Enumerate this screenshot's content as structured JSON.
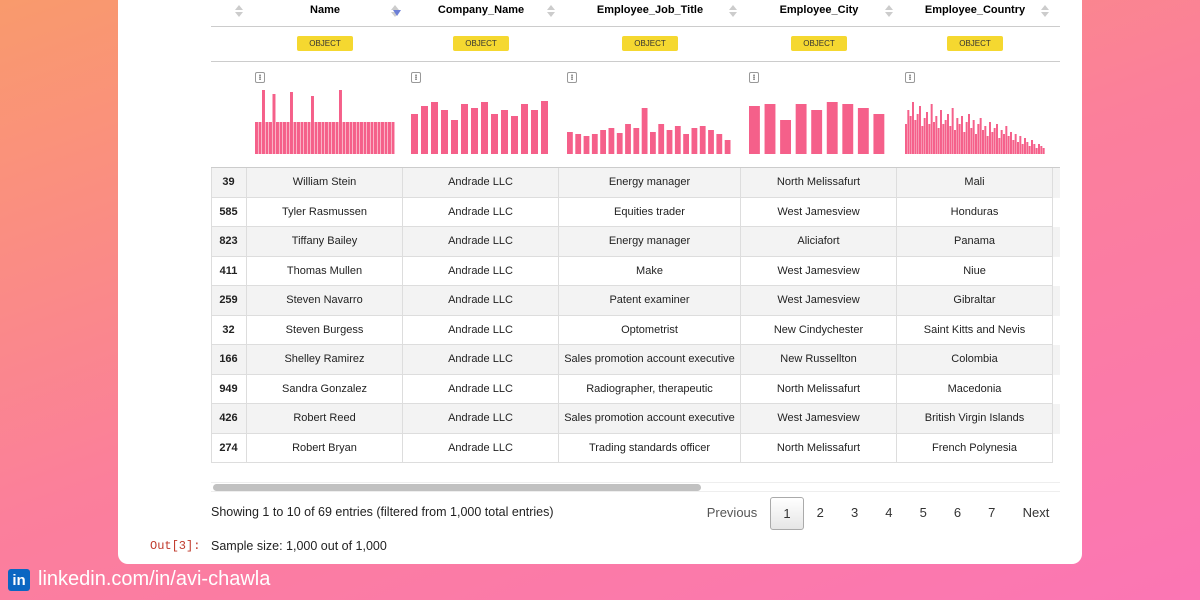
{
  "table": {
    "columns": [
      "Name",
      "Company_Name",
      "Employee_Job_Title",
      "Employee_City",
      "Employee_Country"
    ],
    "dtypes": [
      "OBJECT",
      "OBJECT",
      "OBJECT",
      "OBJECT",
      "OBJECT"
    ],
    "histograms": [
      [
        32,
        32,
        64,
        32,
        32,
        60,
        32,
        32,
        32,
        32,
        62,
        32,
        32,
        32,
        32,
        32,
        58,
        32,
        32,
        32,
        32,
        32,
        32,
        32,
        64,
        32,
        32,
        32,
        32,
        32,
        32,
        32,
        32,
        32,
        32,
        32,
        32,
        32,
        32,
        32
      ],
      [
        40,
        48,
        52,
        44,
        34,
        50,
        46,
        52,
        40,
        44,
        38,
        50,
        44,
        53
      ],
      [
        22,
        20,
        18,
        20,
        24,
        26,
        21,
        30,
        26,
        46,
        22,
        30,
        24,
        28,
        20,
        26,
        28,
        24,
        20,
        14
      ],
      [
        48,
        50,
        34,
        50,
        44,
        52,
        50,
        46,
        40
      ],
      [
        30,
        44,
        38,
        52,
        34,
        40,
        48,
        28,
        36,
        42,
        30,
        50,
        32,
        38,
        26,
        44,
        30,
        34,
        40,
        28,
        46,
        24,
        36,
        30,
        38,
        22,
        32,
        40,
        26,
        34,
        20,
        30,
        36,
        24,
        28,
        18,
        32,
        22,
        26,
        30,
        16,
        24,
        20,
        28,
        18,
        22,
        14,
        20,
        12,
        18,
        10,
        16,
        12,
        8,
        14,
        10,
        6,
        10,
        8,
        6
      ]
    ],
    "rows": [
      [
        39,
        "William Stein",
        "Andrade LLC",
        "Energy manager",
        "North Melissafurt",
        "Mali"
      ],
      [
        585,
        "Tyler Rasmussen",
        "Andrade LLC",
        "Equities trader",
        "West Jamesview",
        "Honduras"
      ],
      [
        823,
        "Tiffany Bailey",
        "Andrade LLC",
        "Energy manager",
        "Aliciafort",
        "Panama"
      ],
      [
        411,
        "Thomas Mullen",
        "Andrade LLC",
        "Make",
        "West Jamesview",
        "Niue"
      ],
      [
        259,
        "Steven Navarro",
        "Andrade LLC",
        "Patent examiner",
        "West Jamesview",
        "Gibraltar"
      ],
      [
        32,
        "Steven Burgess",
        "Andrade LLC",
        "Optometrist",
        "New Cindychester",
        "Saint Kitts and Nevis"
      ],
      [
        166,
        "Shelley Ramirez",
        "Andrade LLC",
        "Sales promotion account executive",
        "New Russellton",
        "Colombia"
      ],
      [
        949,
        "Sandra Gonzalez",
        "Andrade LLC",
        "Radiographer, therapeutic",
        "North Melissafurt",
        "Macedonia"
      ],
      [
        426,
        "Robert Reed",
        "Andrade LLC",
        "Sales promotion account executive",
        "West Jamesview",
        "British Virgin Islands"
      ],
      [
        274,
        "Robert Bryan",
        "Andrade LLC",
        "Trading standards officer",
        "North Melissafurt",
        "French Polynesia"
      ]
    ],
    "info": "Showing 1 to 10 of 69 entries (filtered from 1,000 total entries)",
    "pagination": {
      "previous": "Previous",
      "pages": [
        1,
        2,
        3,
        4,
        5,
        6,
        7
      ],
      "next": "Next"
    }
  },
  "output": {
    "prompt": "Out[3]:",
    "text": "Sample size: 1,000 out of 1,000"
  },
  "watermark": "linkedin.com/in/avi-chawla"
}
